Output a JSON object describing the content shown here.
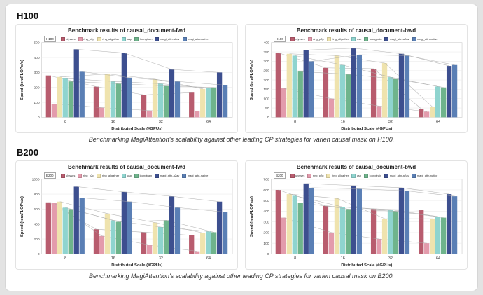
{
  "sections": [
    {
      "heading": "H100",
      "caption": "Benchmarking MagiAttention's scalability against other leading CP strategies for varlen causal mask on H100."
    },
    {
      "heading": "B200",
      "caption": "Benchmarking MagiAttention's scalability against other leading CP strategies for varlen causal mask on B200."
    }
  ],
  "chart_data": [
    {
      "type": "bar",
      "title": "Benchmark results of causal_document-fwd",
      "corner_label": "H100",
      "xlabel": "Distributed Scale (#GPUs)",
      "ylabel": "Speed (teraFLOPs/s)",
      "categories": [
        "8",
        "16",
        "32",
        "64"
      ],
      "ylim": [
        0,
        500
      ],
      "yticks": [
        0,
        100,
        200,
        300,
        400,
        500
      ],
      "grid": true,
      "legend_position": "top",
      "series": [
        {
          "name": "ulysses",
          "color": "#b85c6e",
          "values": [
            280,
            205,
            150,
            165
          ]
        },
        {
          "name": "ring_p2p",
          "color": "#e39bac",
          "values": [
            90,
            65,
            45,
            40
          ]
        },
        {
          "name": "ring_allgather",
          "color": "#efe3ae",
          "values": [
            270,
            290,
            255,
            190
          ]
        },
        {
          "name": "usp",
          "color": "#8fd4cf",
          "values": [
            260,
            240,
            225,
            195
          ]
        },
        {
          "name": "loongtrain",
          "color": "#6fb48c",
          "values": [
            240,
            225,
            210,
            200
          ]
        },
        {
          "name": "magi_attn-a2av",
          "color": "#3d4f8f",
          "values": [
            455,
            430,
            320,
            300
          ]
        },
        {
          "name": "magi_attn-native",
          "color": "#5a7fb5",
          "values": [
            305,
            265,
            240,
            215
          ]
        }
      ]
    },
    {
      "type": "bar",
      "title": "Benchmark results of causal_document-bwd",
      "corner_label": "H100",
      "xlabel": "Distributed Scale (#GPUs)",
      "ylabel": "Speed (teraFLOPs/s)",
      "categories": [
        "8",
        "16",
        "32",
        "64"
      ],
      "ylim": [
        0,
        400
      ],
      "yticks": [
        0,
        50,
        100,
        150,
        200,
        250,
        300,
        350,
        400
      ],
      "grid": true,
      "legend_position": "top",
      "series": [
        {
          "name": "ulysses",
          "color": "#b85c6e",
          "values": [
            345,
            265,
            260,
            45
          ]
        },
        {
          "name": "ring_p2p",
          "color": "#e39bac",
          "values": [
            155,
            100,
            60,
            30
          ]
        },
        {
          "name": "ring_allgather",
          "color": "#efe3ae",
          "values": [
            340,
            330,
            290,
            55
          ]
        },
        {
          "name": "usp",
          "color": "#8fd4cf",
          "values": [
            330,
            280,
            215,
            165
          ]
        },
        {
          "name": "loongtrain",
          "color": "#6fb48c",
          "values": [
            245,
            230,
            205,
            160
          ]
        },
        {
          "name": "magi_attn-a2av",
          "color": "#3d4f8f",
          "values": [
            360,
            370,
            340,
            275
          ]
        },
        {
          "name": "magi_attn-native",
          "color": "#5a7fb5",
          "values": [
            300,
            335,
            330,
            280
          ]
        }
      ]
    },
    {
      "type": "bar",
      "title": "Benchmark results of causal_document-fwd",
      "corner_label": "B200",
      "xlabel": "Distributed Scale (#GPUs)",
      "ylabel": "Speed (teraFLOPs/s)",
      "categories": [
        "8",
        "16",
        "32",
        "64"
      ],
      "ylim": [
        0,
        1000
      ],
      "yticks": [
        0,
        200,
        400,
        600,
        800,
        1000
      ],
      "grid": true,
      "legend_position": "top",
      "series": [
        {
          "name": "ulysses",
          "color": "#b85c6e",
          "values": [
            690,
            330,
            290,
            250
          ]
        },
        {
          "name": "ring_p2p",
          "color": "#e39bac",
          "values": [
            680,
            240,
            120,
            35
          ]
        },
        {
          "name": "ring_allgather",
          "color": "#efe3ae",
          "values": [
            700,
            540,
            420,
            280
          ]
        },
        {
          "name": "usp",
          "color": "#8fd4cf",
          "values": [
            620,
            450,
            360,
            300
          ]
        },
        {
          "name": "loongtrain",
          "color": "#6fb48c",
          "values": [
            600,
            430,
            450,
            290
          ]
        },
        {
          "name": "magi_attn-a2av",
          "color": "#3d4f8f",
          "values": [
            900,
            830,
            770,
            700
          ]
        },
        {
          "name": "magi_attn-native",
          "color": "#5a7fb5",
          "values": [
            750,
            700,
            620,
            560
          ]
        }
      ]
    },
    {
      "type": "bar",
      "title": "Benchmark results of causal_document-bwd",
      "corner_label": "B200",
      "xlabel": "Distributed Scale (#GPUs)",
      "ylabel": "Speed (teraFLOPs/s)",
      "categories": [
        "8",
        "16",
        "32",
        "64"
      ],
      "ylim": [
        0,
        700
      ],
      "yticks": [
        0,
        100,
        200,
        300,
        400,
        500,
        600,
        700
      ],
      "grid": true,
      "legend_position": "top",
      "series": [
        {
          "name": "ulysses",
          "color": "#b85c6e",
          "values": [
            600,
            450,
            420,
            410
          ]
        },
        {
          "name": "ring_p2p",
          "color": "#e39bac",
          "values": [
            340,
            200,
            140,
            100
          ]
        },
        {
          "name": "ring_allgather",
          "color": "#efe3ae",
          "values": [
            560,
            520,
            330,
            330
          ]
        },
        {
          "name": "usp",
          "color": "#8fd4cf",
          "values": [
            545,
            440,
            415,
            350
          ]
        },
        {
          "name": "loongtrain",
          "color": "#6fb48c",
          "values": [
            480,
            420,
            400,
            340
          ]
        },
        {
          "name": "magi_attn-a2av",
          "color": "#3d4f8f",
          "values": [
            660,
            640,
            620,
            560
          ]
        },
        {
          "name": "magi_attn-native",
          "color": "#5a7fb5",
          "values": [
            620,
            610,
            590,
            540
          ]
        }
      ]
    }
  ]
}
